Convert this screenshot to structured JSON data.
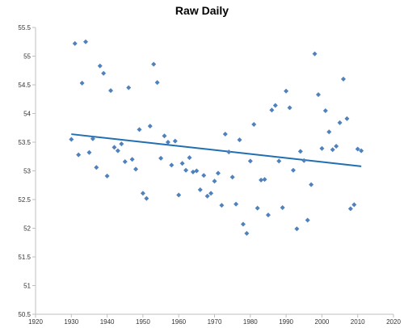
{
  "chart_data": {
    "type": "scatter",
    "title": "Raw Daily",
    "xlabel": "",
    "ylabel": "",
    "xlim": [
      1920,
      2020
    ],
    "ylim": [
      50.5,
      55.5
    ],
    "x_ticks": [
      1920,
      1930,
      1940,
      1950,
      1960,
      1970,
      1980,
      1990,
      2000,
      2010,
      2020
    ],
    "y_ticks": [
      50.5,
      51,
      51.5,
      52,
      52.5,
      53,
      53.5,
      54,
      54.5,
      55,
      55.5
    ],
    "grid": {
      "x": false,
      "y": false
    },
    "legend": "none",
    "series": [
      {
        "marker": "diamond",
        "color": "#4f81bd",
        "points": [
          [
            1930,
            53.55
          ],
          [
            1931,
            55.22
          ],
          [
            1932,
            53.28
          ],
          [
            1933,
            54.53
          ],
          [
            1934,
            55.25
          ],
          [
            1935,
            53.32
          ],
          [
            1936,
            53.56
          ],
          [
            1937,
            53.06
          ],
          [
            1938,
            54.83
          ],
          [
            1939,
            54.7
          ],
          [
            1940,
            52.91
          ],
          [
            1941,
            54.4
          ],
          [
            1942,
            53.41
          ],
          [
            1943,
            53.35
          ],
          [
            1944,
            53.47
          ],
          [
            1945,
            53.16
          ],
          [
            1946,
            54.45
          ],
          [
            1947,
            53.2
          ],
          [
            1948,
            53.03
          ],
          [
            1949,
            53.72
          ],
          [
            1950,
            52.61
          ],
          [
            1951,
            52.52
          ],
          [
            1952,
            53.78
          ],
          [
            1953,
            54.86
          ],
          [
            1954,
            54.54
          ],
          [
            1955,
            53.22
          ],
          [
            1956,
            53.61
          ],
          [
            1957,
            53.5
          ],
          [
            1958,
            53.1
          ],
          [
            1959,
            53.52
          ],
          [
            1960,
            52.58
          ],
          [
            1961,
            53.13
          ],
          [
            1962,
            53.01
          ],
          [
            1963,
            53.23
          ],
          [
            1964,
            52.98
          ],
          [
            1965,
            53.0
          ],
          [
            1966,
            52.67
          ],
          [
            1967,
            52.92
          ],
          [
            1968,
            52.56
          ],
          [
            1969,
            52.61
          ],
          [
            1970,
            52.82
          ],
          [
            1971,
            52.96
          ],
          [
            1972,
            52.4
          ],
          [
            1973,
            53.64
          ],
          [
            1974,
            53.33
          ],
          [
            1975,
            52.89
          ],
          [
            1976,
            52.42
          ],
          [
            1977,
            53.54
          ],
          [
            1978,
            52.07
          ],
          [
            1979,
            51.91
          ],
          [
            1980,
            53.17
          ],
          [
            1981,
            53.81
          ],
          [
            1982,
            52.35
          ],
          [
            1983,
            52.84
          ],
          [
            1984,
            52.85
          ],
          [
            1985,
            52.23
          ],
          [
            1986,
            54.06
          ],
          [
            1987,
            54.14
          ],
          [
            1988,
            53.17
          ],
          [
            1989,
            52.36
          ],
          [
            1990,
            54.39
          ],
          [
            1991,
            54.1
          ],
          [
            1992,
            53.01
          ],
          [
            1993,
            51.99
          ],
          [
            1994,
            53.34
          ],
          [
            1995,
            53.18
          ],
          [
            1996,
            52.14
          ],
          [
            1997,
            52.76
          ],
          [
            1998,
            55.04
          ],
          [
            1999,
            54.33
          ],
          [
            2000,
            53.39
          ],
          [
            2001,
            54.05
          ],
          [
            2002,
            53.68
          ],
          [
            2003,
            53.37
          ],
          [
            2004,
            53.43
          ],
          [
            2005,
            53.84
          ],
          [
            2006,
            54.6
          ],
          [
            2007,
            53.91
          ],
          [
            2008,
            52.34
          ],
          [
            2009,
            52.41
          ],
          [
            2010,
            53.38
          ],
          [
            2011,
            53.35
          ]
        ]
      }
    ],
    "trendline": {
      "type": "linear",
      "color": "#1f6fb2",
      "points": [
        [
          1930,
          53.64
        ],
        [
          2011,
          53.08
        ]
      ]
    },
    "axis_color": "#bfbfbf"
  }
}
